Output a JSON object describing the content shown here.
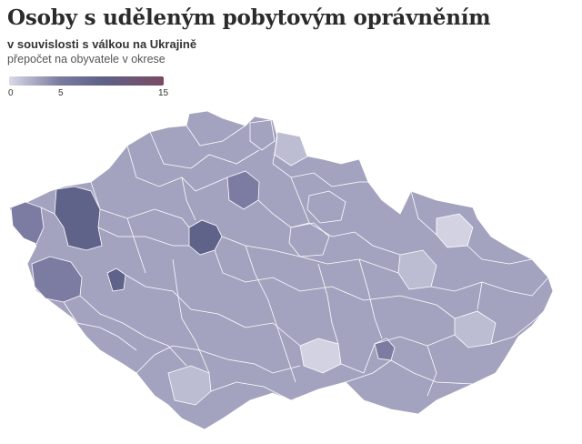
{
  "title": "Osoby s uděleným pobytovým oprávněním",
  "subtitle": "v souvislosti s válkou na Ukrajině",
  "note": "přepočet na obyvatele v okrese",
  "legend": {
    "ticks": [
      "0",
      "5",
      "15"
    ],
    "colors": [
      "#d9d9e6",
      "#7a7aa0",
      "#5e6287",
      "#7a4a62"
    ]
  },
  "colors": {
    "lightest": "#d2d2e2",
    "light": "#bcbcd3",
    "medium": "#a3a3c0",
    "dark": "#7c7ca3",
    "darkest": "#5f6289",
    "border": "#ffffff"
  }
}
